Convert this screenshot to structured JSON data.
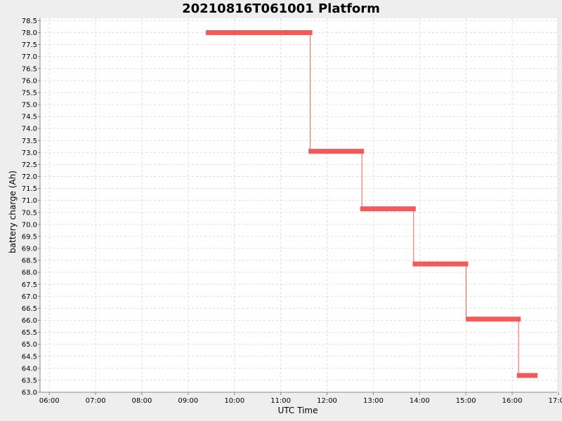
{
  "chart_data": {
    "type": "line",
    "title": "20210816T061001 Platform",
    "xlabel": "UTC Time",
    "ylabel": "battery charge (Ah)",
    "ylim": [
      63.0,
      78.6
    ],
    "ytick_step": 0.5,
    "xlim_hours": [
      5.8,
      16.97
    ],
    "xticks": [
      "06:00",
      "07:00",
      "08:00",
      "09:00",
      "10:00",
      "11:00",
      "12:00",
      "13:00",
      "14:00",
      "15:00",
      "16:00",
      "17:00"
    ],
    "grid": true,
    "series": [
      {
        "color": "#f55a5a",
        "segments": [
          {
            "start": "09:23",
            "end": "11:41",
            "value": 78.0
          },
          {
            "start": "11:36",
            "end": "12:48",
            "value": 73.05
          },
          {
            "start": "12:43",
            "end": "13:55",
            "value": 70.65
          },
          {
            "start": "13:51",
            "end": "15:03",
            "value": 68.35
          },
          {
            "start": "15:00",
            "end": "16:11",
            "value": 66.05
          },
          {
            "start": "16:06",
            "end": "16:33",
            "value": 63.7
          }
        ]
      }
    ]
  }
}
